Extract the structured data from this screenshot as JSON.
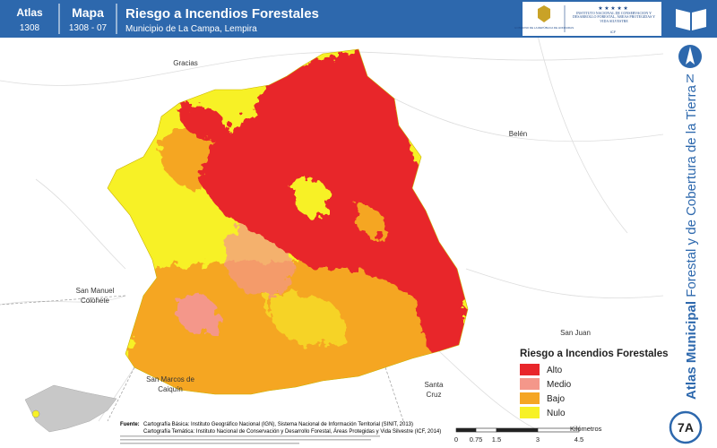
{
  "header": {
    "atlas_label": "Atlas",
    "atlas_number": "1308",
    "mapa_label": "Mapa",
    "mapa_number": "1308 - 07",
    "title": "Riesgo a Incendios Forestales",
    "subtitle": "Municipio de La Campa, Lempira",
    "logo_gov": "GOBIERNO DE LA REPÚBLICA DE HONDURAS",
    "logo_icf": "INSTITUTO NACIONAL DE CONSERVACIÓN Y DESARROLLO FORESTAL, ÁREAS PROTEGIDAS Y VIDA SILVESTRE",
    "logo_icf_abbr": "ICF"
  },
  "north": "N",
  "side_title": {
    "bold": "Atlas Municipal",
    "regular": "Forestal y de Cobertura de la Tierra"
  },
  "places": [
    {
      "label": "Gracias"
    },
    {
      "label": "Belén"
    },
    {
      "label": "San Manuel",
      "label2": "Colohete"
    },
    {
      "label": "San Juan"
    },
    {
      "label": "San Marcos de",
      "label2": "Caiquín"
    },
    {
      "label": "Santa",
      "label2": "Cruz"
    }
  ],
  "legend": {
    "title": "Riesgo a Incendios Forestales",
    "items": [
      {
        "label": "Alto",
        "color": "#e8262a"
      },
      {
        "label": "Medio",
        "color": "#f4978a"
      },
      {
        "label": "Bajo",
        "color": "#f5a623"
      },
      {
        "label": "Nulo",
        "color": "#f7f126"
      }
    ]
  },
  "scale": {
    "ticks": [
      "0",
      "0.75",
      "1.5",
      "3",
      "4.5"
    ],
    "unit": "Kilómetros"
  },
  "sources": {
    "label": "Fuente:",
    "line1": "Cartografía Básica: Instituto Geográfico Nacional (IGN), Sistema Nacional de Información Territorial (SINIT, 2013)",
    "line2": "Cartografía Temática: Instituto Nacional de Conservación y Desarrollo Forestal, Áreas Protegidas y Vida Silvestre (ICF, 2014)"
  },
  "badge": "7A"
}
